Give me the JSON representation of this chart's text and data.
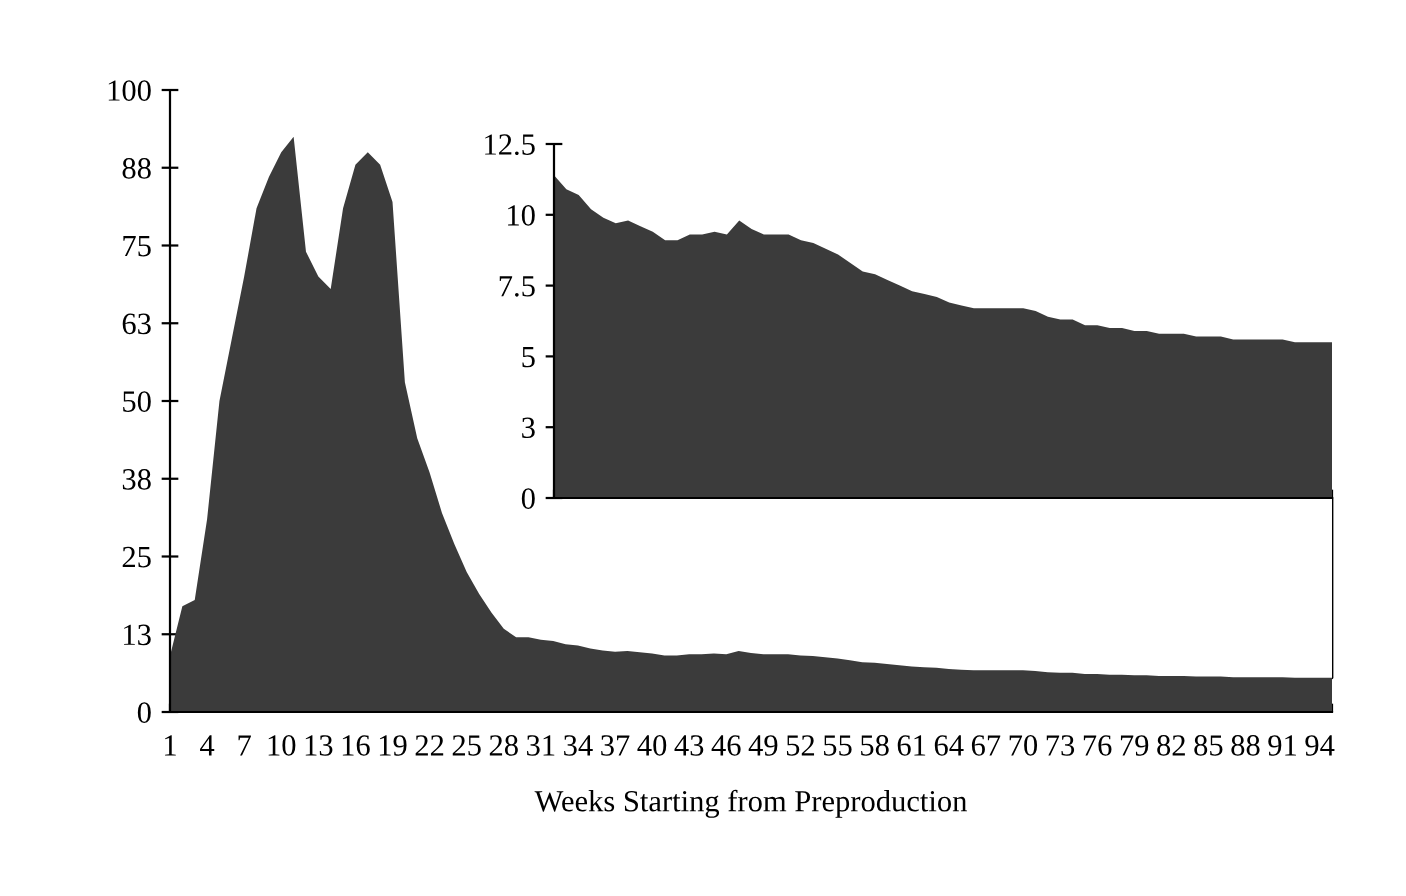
{
  "chart_data": [
    {
      "type": "area",
      "xlabel": "Weeks Starting from Preproduction",
      "categories": [
        "1",
        null,
        null,
        "4",
        null,
        null,
        "7",
        null,
        null,
        "10",
        null,
        null,
        "13",
        null,
        null,
        "16",
        null,
        null,
        "19",
        null,
        null,
        "22",
        null,
        null,
        "25",
        null,
        null,
        "28",
        null,
        null,
        "31",
        null,
        null,
        "34",
        null,
        null,
        "37",
        null,
        null,
        "40",
        null,
        null,
        "43",
        null,
        null,
        "46",
        null,
        null,
        "49",
        null,
        null,
        "52",
        null,
        null,
        "55",
        null,
        null,
        "58",
        null,
        null,
        "61",
        null,
        null,
        "64",
        null,
        null,
        "67",
        null,
        null,
        "70",
        null,
        null,
        "73",
        null,
        null,
        "76",
        null,
        null,
        "79",
        null,
        null,
        "82",
        null,
        null,
        "85",
        null,
        null,
        "88",
        null,
        null,
        "91",
        null,
        null,
        "94",
        null
      ],
      "series": [
        {
          "color": "#3b3b3b",
          "values": [
            9,
            17,
            18,
            31,
            50,
            60,
            70,
            81,
            86,
            90,
            92.5,
            74,
            70,
            68,
            81,
            88,
            90,
            88,
            82,
            53,
            44,
            38.5,
            32,
            27,
            22.5,
            19,
            16,
            13.4,
            12,
            12,
            11.6,
            11.4,
            10.9,
            10.7,
            10.2,
            9.9,
            9.7,
            9.8,
            9.6,
            9.4,
            9.1,
            9.1,
            9.3,
            9.3,
            9.4,
            9.3,
            9.8,
            9.5,
            9.3,
            9.3,
            9.3,
            9.1,
            9,
            8.8,
            8.6,
            8.3,
            8,
            7.9,
            7.7,
            7.5,
            7.3,
            7.2,
            7.1,
            6.9,
            6.8,
            6.7,
            6.7,
            6.7,
            6.7,
            6.7,
            6.6,
            6.4,
            6.3,
            6.3,
            6.1,
            6.1,
            6,
            6,
            5.9,
            5.9,
            5.8,
            5.8,
            5.8,
            5.7,
            5.7,
            5.7,
            5.6,
            5.6,
            5.6,
            5.6,
            5.6,
            5.5,
            5.5,
            5.5,
            5.5
          ]
        }
      ],
      "ylim": [
        0,
        100
      ],
      "yticks": [
        0,
        {
          "value": 12.5,
          "label": "13"
        },
        25,
        {
          "value": 37.5,
          "label": "38"
        },
        50,
        {
          "value": 62.5,
          "label": "63"
        },
        75,
        {
          "value": 87.5,
          "label": "88"
        },
        100
      ],
      "grid": false
    },
    {
      "type": "area",
      "categories": [
        null,
        null,
        null,
        null,
        null,
        null,
        null,
        null,
        null,
        null,
        null,
        null,
        null,
        null,
        null,
        null,
        null,
        null,
        null,
        null,
        null,
        null,
        null,
        null,
        null,
        null,
        null,
        null,
        null,
        null,
        null,
        null,
        null,
        null,
        null,
        null,
        null,
        null,
        null,
        null,
        null,
        null,
        null,
        null,
        null,
        null,
        null,
        null,
        null,
        null,
        null,
        null,
        null,
        null,
        null,
        null,
        null,
        null,
        null,
        null,
        null,
        null,
        null,
        null
      ],
      "series": [
        {
          "color": "#3b3b3b",
          "values": [
            11.4,
            10.9,
            10.7,
            10.2,
            9.9,
            9.7,
            9.8,
            9.6,
            9.4,
            9.1,
            9.1,
            9.3,
            9.3,
            9.4,
            9.3,
            9.8,
            9.5,
            9.3,
            9.3,
            9.3,
            9.1,
            9,
            8.8,
            8.6,
            8.3,
            8,
            7.9,
            7.7,
            7.5,
            7.3,
            7.2,
            7.1,
            6.9,
            6.8,
            6.7,
            6.7,
            6.7,
            6.7,
            6.7,
            6.6,
            6.4,
            6.3,
            6.3,
            6.1,
            6.1,
            6,
            6,
            5.9,
            5.9,
            5.8,
            5.8,
            5.8,
            5.7,
            5.7,
            5.7,
            5.6,
            5.6,
            5.6,
            5.6,
            5.6,
            5.5,
            5.5,
            5.5,
            5.5
          ]
        }
      ],
      "ylim": [
        0,
        12.5
      ],
      "yticks": [
        0,
        {
          "value": 2.5,
          "label": "3"
        },
        5,
        7.5,
        10,
        12.5
      ],
      "tick_labels": "y",
      "grid": false
    }
  ]
}
